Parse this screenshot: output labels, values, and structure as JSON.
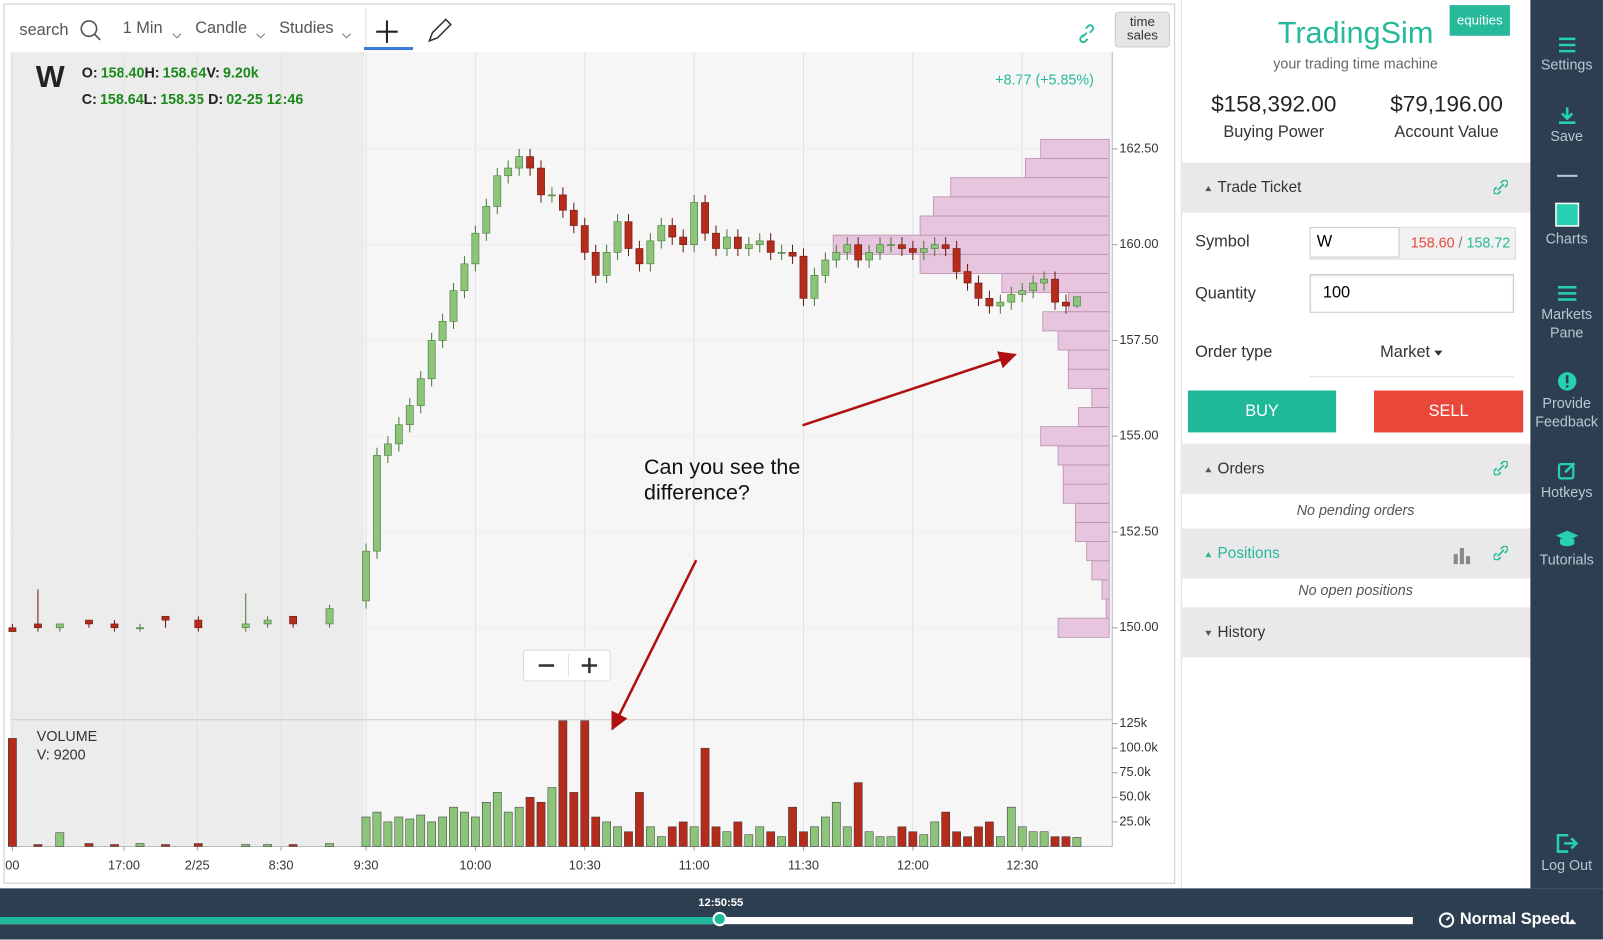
{
  "toolbar": {
    "search": "search",
    "interval": "1 Min",
    "chart_style": "Candle",
    "studies": "Studies",
    "time_sales": [
      "time",
      "sales"
    ]
  },
  "legend": {
    "symbol": "W",
    "open_label": "O:",
    "open": "158.40",
    "high_label": "H:",
    "high": "158.64",
    "volume_label": "V:",
    "volume": "9.20k",
    "close_label": "C:",
    "close": "158.64",
    "low_label": "L:",
    "low": "158.35",
    "date_label": "D:",
    "date": "02-25 12:46"
  },
  "change": "+8.77 (+5.85%)",
  "annotation": [
    "Can you see the",
    "difference?"
  ],
  "volume_legend": {
    "title": "VOLUME",
    "value": "V: 9200"
  },
  "chart_data": {
    "type": "candlestick",
    "x": [
      -97,
      -90,
      -84,
      -76,
      -69,
      -62,
      -55,
      -46,
      -33,
      -27,
      -20,
      -10,
      0,
      3,
      6,
      9,
      12,
      15,
      18,
      21,
      24,
      27,
      30,
      33,
      36,
      39,
      42,
      45,
      48,
      51,
      54,
      57,
      60,
      63,
      66,
      69,
      72,
      75,
      78,
      81,
      84,
      87,
      90,
      93,
      96,
      99,
      102,
      105,
      108,
      111,
      114,
      117,
      120,
      123,
      126,
      129,
      132,
      135,
      138,
      141,
      144,
      147,
      150,
      153,
      156,
      159,
      162,
      165,
      168,
      171,
      174,
      177,
      180,
      183,
      186,
      189,
      192,
      195
    ],
    "open": [
      150.0,
      150.1,
      150.0,
      150.2,
      150.1,
      150.0,
      150.3,
      150.2,
      150.0,
      150.1,
      150.3,
      150.1,
      150.7,
      152.0,
      154.5,
      154.8,
      155.3,
      155.8,
      156.5,
      157.5,
      158.0,
      158.8,
      159.5,
      160.3,
      161.0,
      161.8,
      162.0,
      162.3,
      162.0,
      161.3,
      161.3,
      160.9,
      160.5,
      159.8,
      159.2,
      159.8,
      160.6,
      159.9,
      159.5,
      160.1,
      160.5,
      160.2,
      160.0,
      161.1,
      160.3,
      159.9,
      160.2,
      159.9,
      160.0,
      160.1,
      159.8,
      159.8,
      159.7,
      158.6,
      159.2,
      159.6,
      159.8,
      160.0,
      159.6,
      159.8,
      160.0,
      160.0,
      159.9,
      159.8,
      159.9,
      160.0,
      159.9,
      159.3,
      159.0,
      158.6,
      158.4,
      158.5,
      158.7,
      158.8,
      159.0,
      159.1,
      158.5,
      158.4
    ],
    "high": [
      150.1,
      151.0,
      150.1,
      150.2,
      150.2,
      150.1,
      150.3,
      150.3,
      150.9,
      150.3,
      150.3,
      150.6,
      152.2,
      154.7,
      155.0,
      155.5,
      156.0,
      156.7,
      157.7,
      158.2,
      159.0,
      159.7,
      160.5,
      161.2,
      162.0,
      162.2,
      162.5,
      162.5,
      162.2,
      161.5,
      161.5,
      161.1,
      160.7,
      160.0,
      160.0,
      160.8,
      160.8,
      160.1,
      160.3,
      160.7,
      160.7,
      160.4,
      161.3,
      161.3,
      160.5,
      160.4,
      160.4,
      160.2,
      160.3,
      160.3,
      160.0,
      160.0,
      159.9,
      159.4,
      159.8,
      160.0,
      160.2,
      160.2,
      160.0,
      160.2,
      160.2,
      160.2,
      160.1,
      160.1,
      160.2,
      160.2,
      160.1,
      159.5,
      159.2,
      158.8,
      158.7,
      158.9,
      159.0,
      159.2,
      159.3,
      159.3,
      158.7,
      158.64
    ],
    "low": [
      149.9,
      149.9,
      149.9,
      150.0,
      149.9,
      149.9,
      150.0,
      149.9,
      149.9,
      150.0,
      150.0,
      150.0,
      150.5,
      151.8,
      154.3,
      154.6,
      155.1,
      155.6,
      156.3,
      157.3,
      157.8,
      158.6,
      159.3,
      160.1,
      160.8,
      161.6,
      161.8,
      161.8,
      161.1,
      161.1,
      160.7,
      160.3,
      159.6,
      159.0,
      159.0,
      159.6,
      159.7,
      159.3,
      159.3,
      159.9,
      160.0,
      159.8,
      159.8,
      160.1,
      159.7,
      159.7,
      159.7,
      159.7,
      159.8,
      159.6,
      159.6,
      159.5,
      158.4,
      158.4,
      159.0,
      159.4,
      159.6,
      159.4,
      159.4,
      159.6,
      159.8,
      159.7,
      159.6,
      159.6,
      159.7,
      159.7,
      159.1,
      158.8,
      158.4,
      158.2,
      158.2,
      158.3,
      158.5,
      158.6,
      158.8,
      158.3,
      158.2,
      158.35
    ],
    "close": [
      149.9,
      150.0,
      150.1,
      150.1,
      150.0,
      150.0,
      150.2,
      150.0,
      150.1,
      150.2,
      150.1,
      150.5,
      152.0,
      154.5,
      154.8,
      155.3,
      155.8,
      156.5,
      157.5,
      158.0,
      158.8,
      159.5,
      160.3,
      161.0,
      161.8,
      162.0,
      162.3,
      162.0,
      161.3,
      161.3,
      160.9,
      160.5,
      159.8,
      159.2,
      159.8,
      160.6,
      159.9,
      159.5,
      160.1,
      160.5,
      160.2,
      160.0,
      161.1,
      160.3,
      159.9,
      160.2,
      159.9,
      160.0,
      160.1,
      159.8,
      159.8,
      159.7,
      158.6,
      159.2,
      159.6,
      159.8,
      160.0,
      159.6,
      159.8,
      160.0,
      160.0,
      159.9,
      159.8,
      159.9,
      160.0,
      159.9,
      159.3,
      159.0,
      158.6,
      158.4,
      158.5,
      158.7,
      158.8,
      159.0,
      159.1,
      158.5,
      158.4,
      158.64
    ],
    "volume": [
      110000,
      2000,
      14000,
      3000,
      2000,
      3000,
      2000,
      3000,
      2000,
      2000,
      2000,
      3000,
      30000,
      35000,
      25000,
      30000,
      28000,
      32000,
      25000,
      30000,
      40000,
      35000,
      30000,
      45000,
      55000,
      35000,
      40000,
      50000,
      45000,
      60000,
      128000,
      55000,
      128000,
      30000,
      25000,
      20000,
      15000,
      55000,
      20000,
      10000,
      20000,
      25000,
      20000,
      100000,
      20000,
      15000,
      25000,
      12000,
      20000,
      15000,
      10000,
      40000,
      15000,
      20000,
      30000,
      45000,
      20000,
      65000,
      15000,
      10000,
      10000,
      20000,
      15000,
      12000,
      25000,
      35000,
      15000,
      10000,
      20000,
      25000,
      10000,
      40000,
      20000,
      15000,
      15000,
      10000,
      10000,
      9200
    ],
    "xlim": [
      -97.6,
      204.7
    ],
    "xticks": [
      {
        "value": -97,
        "label": "00"
      },
      {
        "value": -66.4,
        "label": "17:00"
      },
      {
        "value": -46.3,
        "label": "2/25"
      },
      {
        "value": -23.3,
        "label": "8:30"
      },
      {
        "value": 0,
        "label": "9:30"
      },
      {
        "value": 30,
        "label": "10:00"
      },
      {
        "value": 60,
        "label": "10:30"
      },
      {
        "value": 90,
        "label": "11:00"
      },
      {
        "value": 120,
        "label": "11:30"
      },
      {
        "value": 150,
        "label": "12:00"
      },
      {
        "value": 180,
        "label": "12:30"
      }
    ],
    "ylim": [
      147.6,
      165
    ],
    "yticks": [
      {
        "value": 150,
        "label": "150.00"
      },
      {
        "value": 152.5,
        "label": "152.50"
      },
      {
        "value": 155,
        "label": "155.00"
      },
      {
        "value": 157.5,
        "label": "157.50"
      },
      {
        "value": 160,
        "label": "160.00"
      },
      {
        "value": 162.5,
        "label": "162.50"
      }
    ],
    "y2lim": [
      0,
      129000
    ],
    "y2ticks": [
      {
        "value": 25000,
        "label": "25.0k"
      },
      {
        "value": 50000,
        "label": "50.0k"
      },
      {
        "value": 75000,
        "label": "75.0k"
      },
      {
        "value": 100000,
        "label": "100.0k"
      },
      {
        "value": 125000,
        "label": "125k"
      }
    ],
    "up_color": "#8cc47a",
    "down_color": "#b52c1c",
    "grid": true,
    "volume_profile": {
      "color": "#e7c5de",
      "prices": [
        150,
        150.5,
        151,
        151.5,
        152,
        152.5,
        153,
        153.5,
        154,
        154.5,
        155,
        155.5,
        156,
        156.5,
        157,
        157.5,
        158,
        158.5,
        159,
        159.5,
        160,
        160.5,
        161,
        161.5,
        162,
        162.5
      ],
      "values": [
        50,
        3,
        7,
        17,
        22,
        33,
        33,
        45,
        45,
        50,
        67,
        30,
        17,
        40,
        40,
        50,
        65,
        40,
        105,
        185,
        270,
        185,
        172,
        155,
        82,
        67
      ]
    }
  },
  "panel": {
    "badge": "equities",
    "brand": "TradingSim",
    "tagline": "your trading time machine",
    "buying_power": "$158,392.00",
    "buying_power_label": "Buying Power",
    "account_value": "$79,196.00",
    "account_value_label": "Account Value",
    "trade_ticket": "Trade Ticket",
    "symbol_label": "Symbol",
    "symbol": "W",
    "bid": "158.60",
    "quote_separator": "/",
    "ask": "158.72",
    "quantity_label": "Quantity",
    "quantity": "100",
    "order_type_label": "Order type",
    "order_type": "Market",
    "buy": "BUY",
    "sell": "SELL",
    "orders": "Orders",
    "orders_empty": "No pending orders",
    "positions": "Positions",
    "positions_empty": "No open positions",
    "history": "History"
  },
  "sidebar": [
    [
      "Settings"
    ],
    [
      "Save"
    ],
    [
      "Charts"
    ],
    [
      "Markets",
      "Pane"
    ],
    [
      "Provide",
      "Feedback"
    ],
    [
      "Hotkeys"
    ],
    [
      "Tutorials"
    ],
    [
      "Log Out"
    ]
  ],
  "playback": {
    "time": "12:50:55",
    "speed": "Normal Speed"
  }
}
